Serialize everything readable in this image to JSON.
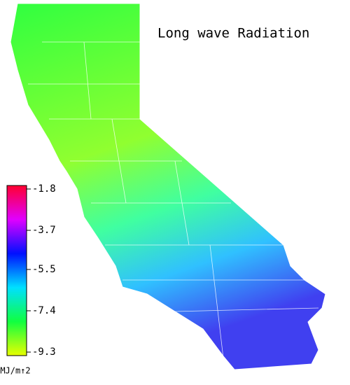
{
  "map": {
    "title": "Long wave Radiation",
    "colorbar": {
      "lim": [
        -1.8,
        -9.3
      ],
      "ticks": [
        -1.8,
        -3.7,
        -5.5,
        -7.4,
        -9.3
      ],
      "colors": [
        "#ff0030",
        "#e000ff",
        "#0010ff",
        "#00e0ff",
        "#10ff40",
        "#e8ff00"
      ],
      "unit": "MJ/m↑2"
    }
  }
}
